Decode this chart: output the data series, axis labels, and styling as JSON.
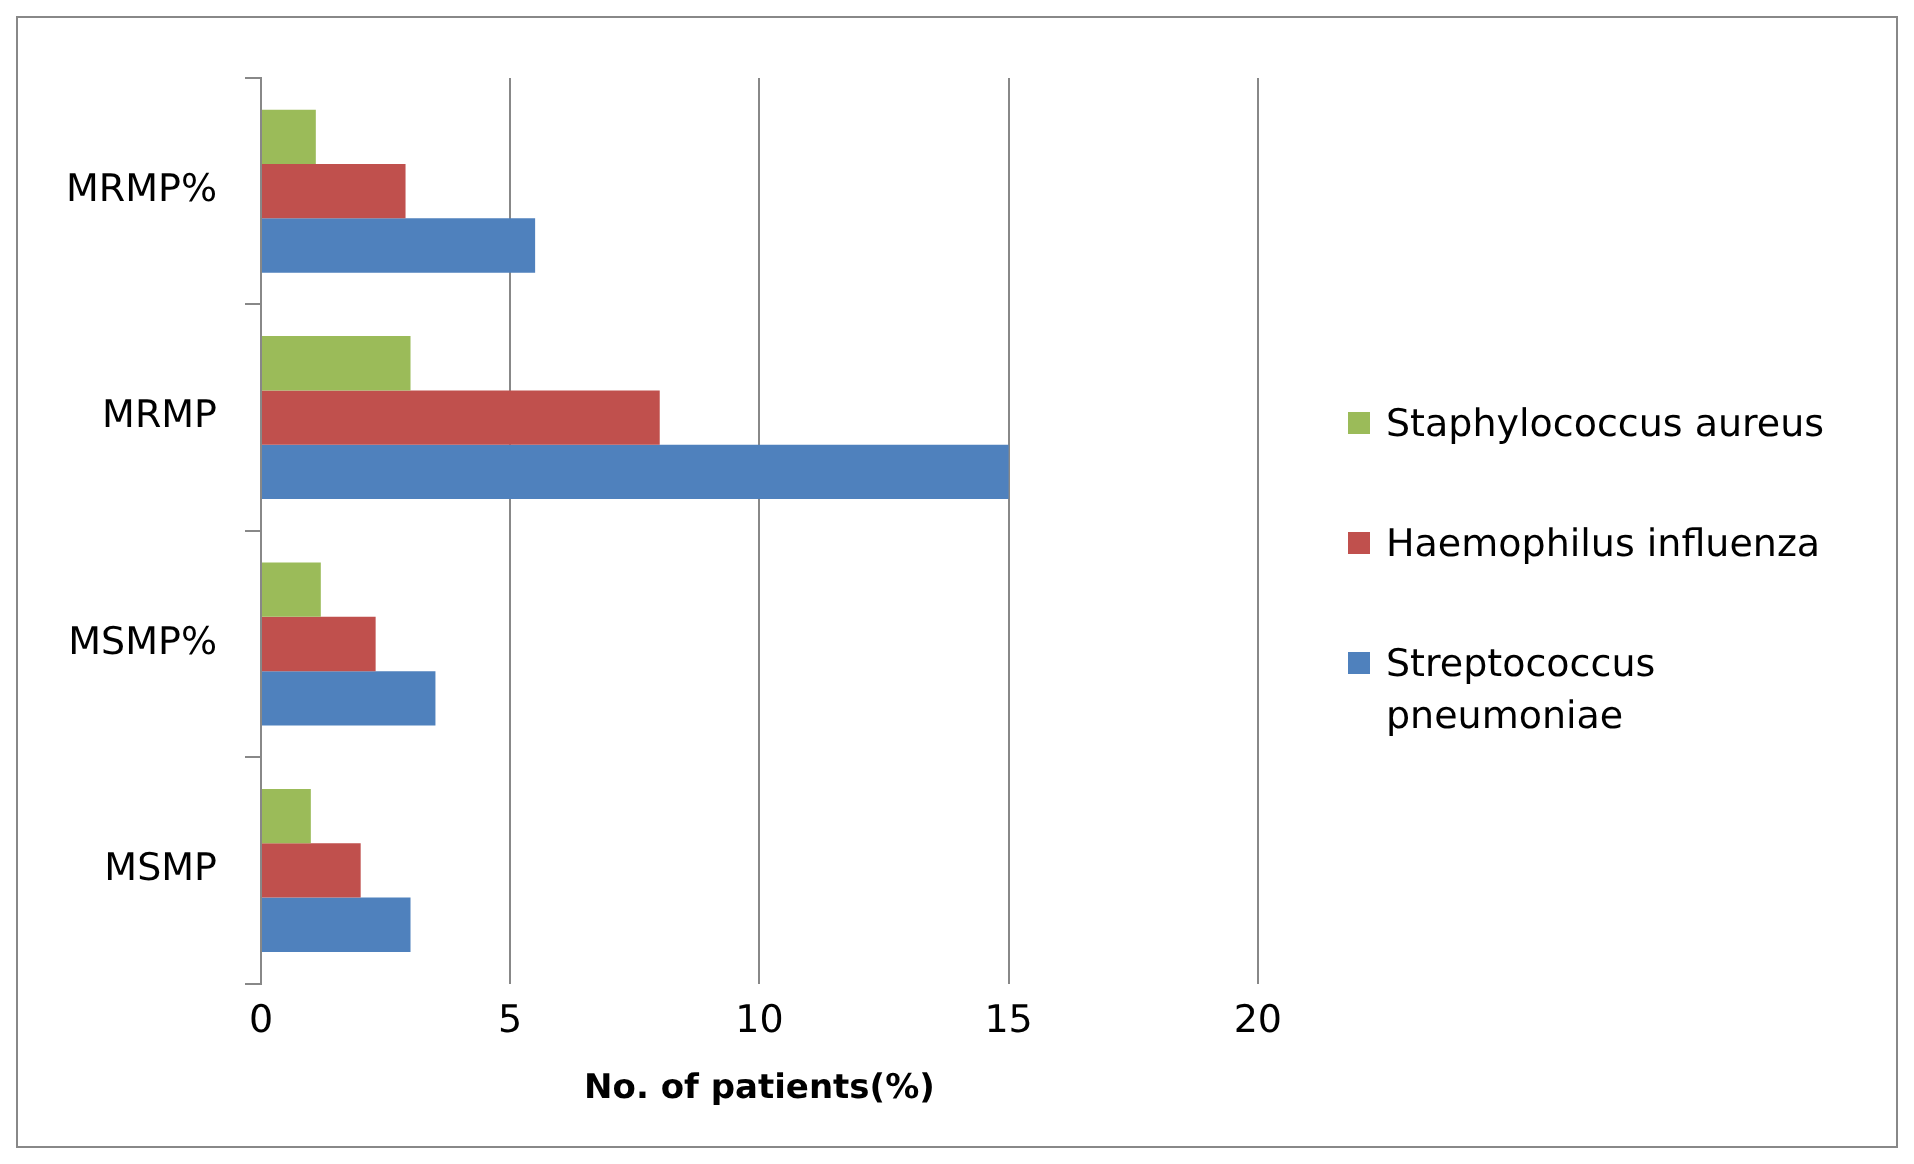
{
  "chart_data": {
    "type": "bar",
    "orientation": "horizontal",
    "xlabel": "No. of patients(%)",
    "categories": [
      "MRMP%",
      "MRMP",
      "MSMP%",
      "MSMP"
    ],
    "series": [
      {
        "name": "Staphylococcus aureus",
        "color": "#9bbb59",
        "values": [
          1.1,
          3,
          1.2,
          1
        ]
      },
      {
        "name": "Haemophilus influenza",
        "color": "#c0504d",
        "values": [
          2.9,
          8,
          2.3,
          2
        ]
      },
      {
        "name": "Streptococcus pneumoniae",
        "color": "#4f81bd",
        "values": [
          5.5,
          15,
          3.5,
          3
        ]
      }
    ],
    "xlim": [
      0,
      20
    ],
    "xticks": [
      0,
      5,
      10,
      15,
      20
    ],
    "grid": "x",
    "legend": "right"
  }
}
